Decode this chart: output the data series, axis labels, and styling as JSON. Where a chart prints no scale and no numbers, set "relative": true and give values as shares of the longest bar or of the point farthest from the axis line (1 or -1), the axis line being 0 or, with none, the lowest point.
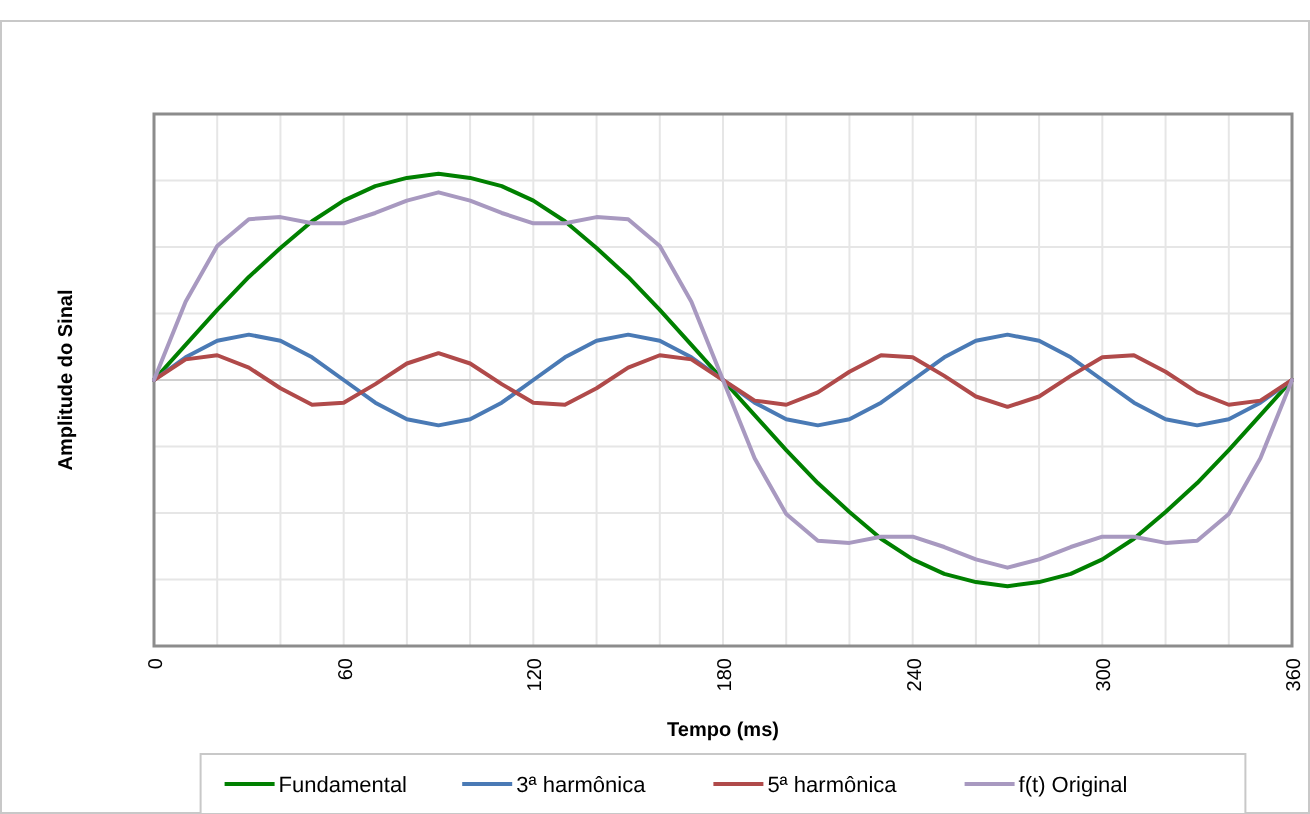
{
  "chart_data": {
    "type": "line",
    "relative": true,
    "xlabel": "Tempo (ms)",
    "ylabel": "Amplitude do Sinal",
    "x": [
      0,
      10,
      20,
      30,
      40,
      50,
      60,
      70,
      80,
      90,
      100,
      110,
      120,
      130,
      140,
      150,
      160,
      170,
      180,
      190,
      200,
      210,
      220,
      230,
      240,
      250,
      260,
      270,
      280,
      290,
      300,
      310,
      320,
      330,
      340,
      350,
      360
    ],
    "xlim": [
      0,
      360
    ],
    "xticks": [
      0,
      {
        "value": 20,
        "label": null
      },
      {
        "value": 40,
        "label": null
      },
      60,
      {
        "value": 80,
        "label": null
      },
      {
        "value": 100,
        "label": null
      },
      120,
      {
        "value": 140,
        "label": null
      },
      {
        "value": 160,
        "label": null
      },
      180,
      {
        "value": 200,
        "label": null
      },
      {
        "value": 220,
        "label": null
      },
      240,
      {
        "value": 260,
        "label": null
      },
      {
        "value": 280,
        "label": null
      },
      300,
      {
        "value": 320,
        "label": null
      },
      {
        "value": 340,
        "label": null
      },
      360
    ],
    "grid": true,
    "legend": "bottom",
    "line_style": "solid",
    "marker": "none",
    "series": [
      {
        "name": "Fundamental",
        "color": "#008000",
        "values": [
          0,
          0.17,
          0.34,
          0.5,
          0.64,
          0.77,
          0.87,
          0.94,
          0.98,
          1,
          0.98,
          0.94,
          0.87,
          0.77,
          0.64,
          0.5,
          0.34,
          0.17,
          0,
          -0.17,
          -0.34,
          -0.5,
          -0.64,
          -0.77,
          -0.87,
          -0.94,
          -0.98,
          -1,
          -0.98,
          -0.94,
          -0.87,
          -0.77,
          -0.64,
          -0.5,
          -0.34,
          -0.17,
          0
        ]
      },
      {
        "name": "3ª harmônica",
        "color": "#4a7ab5",
        "values": [
          0,
          0.11,
          0.19,
          0.22,
          0.19,
          0.11,
          0,
          -0.11,
          -0.19,
          -0.22,
          -0.19,
          -0.11,
          0,
          0.11,
          0.19,
          0.22,
          0.19,
          0.11,
          0,
          -0.11,
          -0.19,
          -0.22,
          -0.19,
          -0.11,
          0,
          0.11,
          0.19,
          0.22,
          0.19,
          0.11,
          0,
          -0.11,
          -0.19,
          -0.22,
          -0.19,
          -0.11,
          0
        ]
      },
      {
        "name": "5ª harmônica",
        "color": "#b04a4a",
        "values": [
          0,
          0.1,
          0.12,
          0.06,
          -0.04,
          -0.12,
          -0.11,
          -0.02,
          0.08,
          0.13,
          0.08,
          -0.02,
          -0.11,
          -0.12,
          -0.04,
          0.06,
          0.12,
          0.1,
          0,
          -0.1,
          -0.12,
          -0.06,
          0.04,
          0.12,
          0.11,
          0.02,
          -0.08,
          -0.13,
          -0.08,
          0.02,
          0.11,
          0.12,
          0.04,
          -0.06,
          -0.12,
          -0.1,
          0
        ]
      },
      {
        "name": "f(t) Original",
        "color": "#a899c0",
        "values": [
          0,
          0.38,
          0.65,
          0.78,
          0.79,
          0.76,
          0.76,
          0.81,
          0.87,
          0.91,
          0.87,
          0.81,
          0.76,
          0.76,
          0.79,
          0.78,
          0.65,
          0.38,
          0,
          -0.38,
          -0.65,
          -0.78,
          -0.79,
          -0.76,
          -0.76,
          -0.81,
          -0.87,
          -0.91,
          -0.87,
          -0.81,
          -0.76,
          -0.76,
          -0.79,
          -0.78,
          -0.65,
          -0.38,
          0
        ]
      }
    ]
  }
}
